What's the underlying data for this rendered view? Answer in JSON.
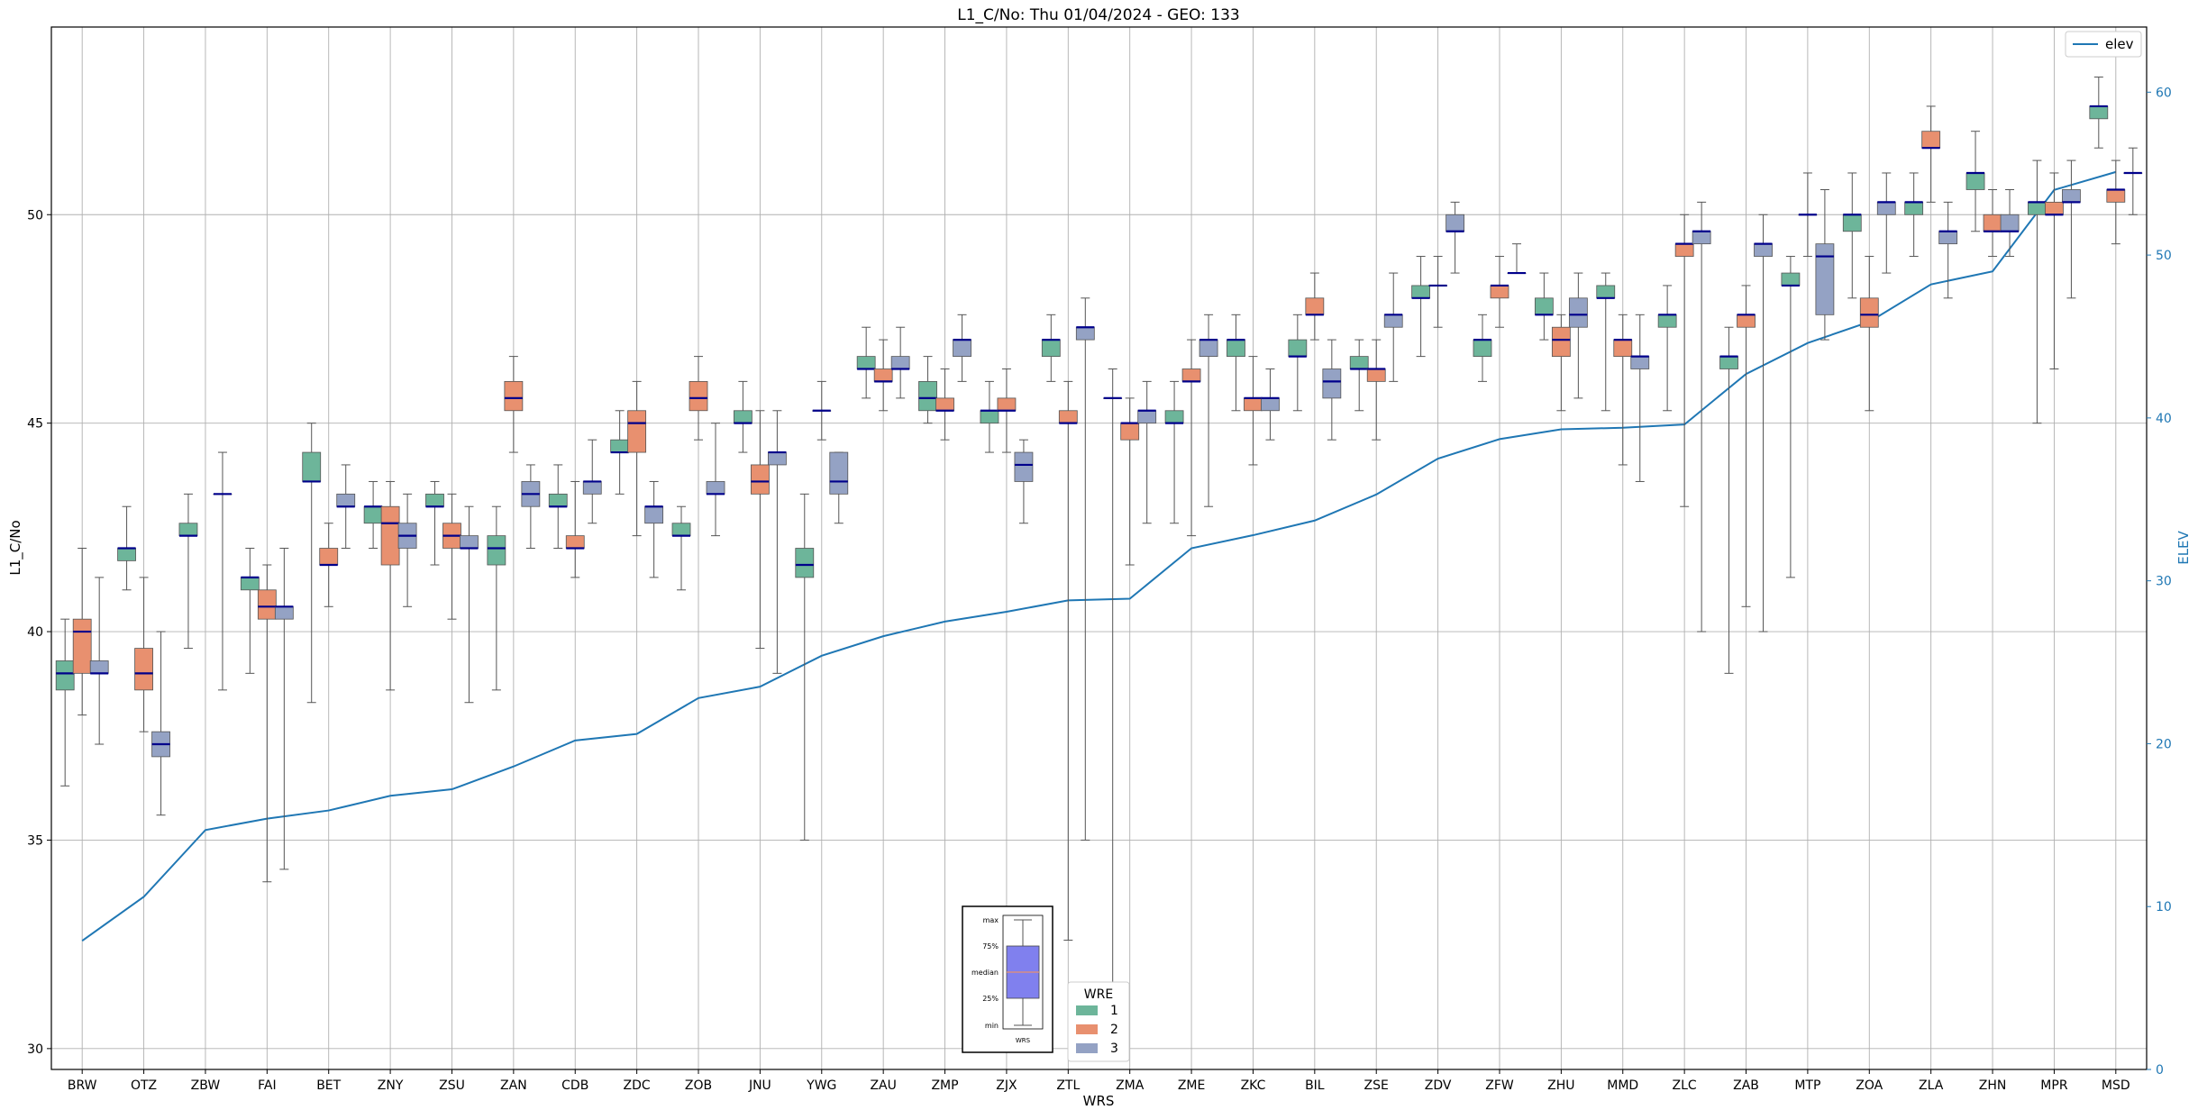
{
  "chart_data": {
    "type": "box",
    "title": "L1_C/No: Thu 01/04/2024 - GEO: 133",
    "xlabel": "WRS",
    "ylabel": "L1_C/No",
    "y2label": "ELEV",
    "ylim": [
      29.5,
      54.5
    ],
    "y2lim": [
      0,
      64
    ],
    "yticks": [
      30,
      35,
      40,
      45,
      50
    ],
    "y2ticks": [
      0,
      10,
      20,
      30,
      40,
      50,
      60
    ],
    "grid": true,
    "categories": [
      "BRW",
      "OTZ",
      "ZBW",
      "FAI",
      "BET",
      "ZNY",
      "ZSU",
      "ZAN",
      "CDB",
      "ZDC",
      "ZOB",
      "JNU",
      "YWG",
      "ZAU",
      "ZMP",
      "ZJX",
      "ZTL",
      "ZMA",
      "ZME",
      "ZKC",
      "BIL",
      "ZSE",
      "ZDV",
      "ZFW",
      "ZHU",
      "MMD",
      "ZLC",
      "ZAB",
      "MTP",
      "ZOA",
      "ZLA",
      "ZHN",
      "MPR",
      "MSD"
    ],
    "groups": [
      "1",
      "2",
      "3"
    ],
    "group_colors": [
      "#6db59a",
      "#e8906f",
      "#94a2c4"
    ],
    "median_color": "#00008b",
    "legend": {
      "title": "WRE",
      "entries": [
        "1",
        "2",
        "3"
      ],
      "position": "bottom-center"
    },
    "elev_legend": {
      "label": "elev",
      "position": "top-right"
    },
    "elev_color": "#1f77b4",
    "elev": [
      7.9,
      10.6,
      14.7,
      15.4,
      15.9,
      16.8,
      17.2,
      18.6,
      20.2,
      20.6,
      22.8,
      23.5,
      25.4,
      26.6,
      27.5,
      28.1,
      28.8,
      28.9,
      32.0,
      32.8,
      33.7,
      35.3,
      37.5,
      38.7,
      39.3,
      39.4,
      39.6,
      42.7,
      44.6,
      45.9,
      48.2,
      49.0,
      54.0,
      55.1
    ],
    "boxes": [
      [
        [
          36.3,
          38.6,
          39.0,
          39.3,
          40.3
        ],
        [
          38.0,
          39.0,
          40.0,
          40.3,
          42.0
        ],
        [
          37.3,
          39.0,
          39.0,
          39.3,
          41.3
        ]
      ],
      [
        [
          41.0,
          41.7,
          42.0,
          42.0,
          43.0
        ],
        [
          37.6,
          38.6,
          39.0,
          39.6,
          41.3
        ],
        [
          35.6,
          37.0,
          37.3,
          37.6,
          40.0
        ]
      ],
      [
        [
          39.6,
          42.3,
          42.3,
          42.6,
          43.3
        ],
        [],
        [
          38.6,
          43.3,
          43.3,
          43.3,
          44.3
        ]
      ],
      [
        [
          39.0,
          41.0,
          41.3,
          41.3,
          42.0
        ],
        [
          34.0,
          40.3,
          40.6,
          41.0,
          41.6
        ],
        [
          34.3,
          40.3,
          40.6,
          40.6,
          42.0
        ]
      ],
      [
        [
          38.3,
          43.6,
          43.6,
          44.3,
          45.0
        ],
        [
          40.6,
          41.6,
          41.6,
          42.0,
          42.6
        ],
        [
          42.0,
          43.0,
          43.0,
          43.3,
          44.0
        ]
      ],
      [
        [
          42.0,
          42.6,
          43.0,
          43.0,
          43.6
        ],
        [
          38.6,
          41.6,
          42.6,
          43.0,
          43.6
        ],
        [
          40.6,
          42.0,
          42.3,
          42.6,
          43.3
        ]
      ],
      [
        [
          41.6,
          43.0,
          43.0,
          43.3,
          43.6
        ],
        [
          40.3,
          42.0,
          42.3,
          42.6,
          43.3
        ],
        [
          38.3,
          42.0,
          42.0,
          42.3,
          43.0
        ]
      ],
      [
        [
          38.6,
          41.6,
          42.0,
          42.3,
          43.0
        ],
        [
          44.3,
          45.3,
          45.6,
          46.0,
          46.6
        ],
        [
          42.0,
          43.0,
          43.3,
          43.6,
          44.0
        ]
      ],
      [
        [
          42.0,
          43.0,
          43.0,
          43.3,
          44.0
        ],
        [
          41.3,
          42.0,
          42.0,
          42.3,
          43.6
        ],
        [
          42.6,
          43.3,
          43.6,
          43.6,
          44.6
        ]
      ],
      [
        [
          43.3,
          44.3,
          44.3,
          44.6,
          45.3
        ],
        [
          42.3,
          44.3,
          45.0,
          45.3,
          46.0
        ],
        [
          41.3,
          42.6,
          43.0,
          43.0,
          43.6
        ]
      ],
      [
        [
          41.0,
          42.3,
          42.3,
          42.6,
          43.0
        ],
        [
          44.6,
          45.3,
          45.6,
          46.0,
          46.6
        ],
        [
          42.3,
          43.3,
          43.3,
          43.6,
          45.0
        ]
      ],
      [
        [
          44.3,
          45.0,
          45.0,
          45.3,
          46.0
        ],
        [
          39.6,
          43.3,
          43.6,
          44.0,
          45.3
        ],
        [
          39.0,
          44.0,
          44.3,
          44.3,
          45.3
        ]
      ],
      [
        [
          35.0,
          41.3,
          41.6,
          42.0,
          43.3
        ],
        [
          44.6,
          45.3,
          45.3,
          45.3,
          46.0
        ],
        [
          42.6,
          43.3,
          43.6,
          44.3,
          44.3
        ]
      ],
      [
        [
          45.6,
          46.3,
          46.3,
          46.6,
          47.3
        ],
        [
          45.3,
          46.0,
          46.0,
          46.3,
          47.0
        ],
        [
          45.6,
          46.3,
          46.3,
          46.6,
          47.3
        ]
      ],
      [
        [
          45.0,
          45.3,
          45.6,
          46.0,
          46.6
        ],
        [
          44.6,
          45.3,
          45.3,
          45.6,
          46.3
        ],
        [
          46.0,
          46.6,
          47.0,
          47.0,
          47.6
        ]
      ],
      [
        [
          44.3,
          45.0,
          45.3,
          45.3,
          46.0
        ],
        [
          44.3,
          45.3,
          45.3,
          45.6,
          46.3
        ],
        [
          42.6,
          43.6,
          44.0,
          44.3,
          44.6
        ]
      ],
      [
        [
          46.0,
          46.6,
          47.0,
          47.0,
          47.6
        ],
        [
          32.6,
          45.0,
          45.0,
          45.3,
          46.0
        ],
        [
          35.0,
          47.0,
          47.3,
          47.3,
          48.0
        ]
      ],
      [
        [
          31.0,
          45.6,
          45.6,
          45.6,
          46.3
        ],
        [
          41.6,
          44.6,
          45.0,
          45.0,
          45.6
        ],
        [
          42.6,
          45.0,
          45.3,
          45.3,
          46.0
        ]
      ],
      [
        [
          42.6,
          45.0,
          45.0,
          45.3,
          46.0
        ],
        [
          42.3,
          46.0,
          46.0,
          46.3,
          47.0
        ],
        [
          43.0,
          46.6,
          47.0,
          47.0,
          47.6
        ]
      ],
      [
        [
          45.3,
          46.6,
          47.0,
          47.0,
          47.6
        ],
        [
          44.0,
          45.3,
          45.6,
          45.6,
          46.6
        ],
        [
          44.6,
          45.3,
          45.6,
          45.6,
          46.3
        ]
      ],
      [
        [
          45.3,
          46.6,
          46.6,
          47.0,
          47.6
        ],
        [
          47.0,
          47.6,
          47.6,
          48.0,
          48.6
        ],
        [
          44.6,
          45.6,
          46.0,
          46.3,
          47.0
        ]
      ],
      [
        [
          45.3,
          46.3,
          46.3,
          46.6,
          47.0
        ],
        [
          44.6,
          46.0,
          46.3,
          46.3,
          47.0
        ],
        [
          46.0,
          47.3,
          47.6,
          47.6,
          48.6
        ]
      ],
      [
        [
          46.6,
          48.0,
          48.0,
          48.3,
          49.0
        ],
        [
          47.3,
          48.3,
          48.3,
          48.3,
          49.0
        ],
        [
          48.6,
          49.6,
          49.6,
          50.0,
          50.3
        ]
      ],
      [
        [
          46.0,
          46.6,
          47.0,
          47.0,
          47.6
        ],
        [
          47.3,
          48.0,
          48.3,
          48.3,
          49.0
        ],
        [
          48.6,
          48.6,
          48.6,
          48.6,
          49.3
        ]
      ],
      [
        [
          47.0,
          47.6,
          47.6,
          48.0,
          48.6
        ],
        [
          45.3,
          46.6,
          47.0,
          47.3,
          47.6
        ],
        [
          45.6,
          47.3,
          47.6,
          48.0,
          48.6
        ]
      ],
      [
        [
          45.3,
          48.0,
          48.0,
          48.3,
          48.6
        ],
        [
          44.0,
          46.6,
          47.0,
          47.0,
          47.6
        ],
        [
          43.6,
          46.3,
          46.6,
          46.6,
          47.6
        ]
      ],
      [
        [
          45.3,
          47.3,
          47.6,
          47.6,
          48.3
        ],
        [
          43.0,
          49.0,
          49.3,
          49.3,
          50.0
        ],
        [
          40.0,
          49.3,
          49.6,
          49.6,
          50.3
        ]
      ],
      [
        [
          39.0,
          46.3,
          46.6,
          46.6,
          47.3
        ],
        [
          40.6,
          47.3,
          47.6,
          47.6,
          48.3
        ],
        [
          40.0,
          49.0,
          49.3,
          49.3,
          50.0
        ]
      ],
      [
        [
          41.3,
          48.3,
          48.3,
          48.6,
          49.0
        ],
        [
          49.0,
          50.0,
          50.0,
          50.0,
          51.0
        ],
        [
          47.0,
          47.6,
          49.0,
          49.3,
          50.6
        ]
      ],
      [
        [
          48.0,
          49.6,
          50.0,
          50.0,
          51.0
        ],
        [
          45.3,
          47.3,
          47.6,
          48.0,
          49.0
        ],
        [
          48.6,
          50.0,
          50.3,
          50.3,
          51.0
        ]
      ],
      [
        [
          49.0,
          50.0,
          50.3,
          50.3,
          51.0
        ],
        [
          50.3,
          51.6,
          51.6,
          52.0,
          52.6
        ],
        [
          48.0,
          49.3,
          49.6,
          49.6,
          50.3
        ]
      ],
      [
        [
          49.6,
          50.6,
          51.0,
          51.0,
          52.0
        ],
        [
          49.0,
          49.6,
          49.6,
          50.0,
          50.6
        ],
        [
          49.0,
          49.6,
          49.6,
          50.0,
          50.6
        ]
      ],
      [
        [
          45.0,
          50.0,
          50.3,
          50.3,
          51.3
        ],
        [
          46.3,
          50.0,
          50.0,
          50.3,
          51.0
        ],
        [
          48.0,
          50.3,
          50.3,
          50.6,
          51.3
        ]
      ],
      [
        [
          51.6,
          52.3,
          52.6,
          52.6,
          53.3
        ],
        [
          49.3,
          50.3,
          50.6,
          50.6,
          51.3
        ],
        [
          50.0,
          51.0,
          51.0,
          51.0,
          51.6
        ]
      ]
    ],
    "inset": {
      "labels": [
        "max",
        "75%",
        "median",
        "25%",
        "min"
      ],
      "xlabel": "WRS"
    }
  }
}
